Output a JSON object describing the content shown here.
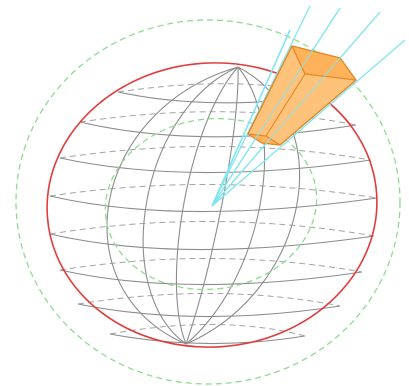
{
  "diagram": {
    "colors": {
      "globe_outline": "#e23b3b",
      "grid_line": "#8c8c8c",
      "outer_circle": "#8fdc8f",
      "inner_ellipse": "#8fdc8f",
      "rays": "#7fe6f0",
      "beam_fill": "#ffc27a",
      "beam_edge": "#e08a2a"
    },
    "elements": [
      "outer-dashed-circle",
      "globe-outline",
      "meridians",
      "latitude-lines",
      "inner-dashed-ellipse",
      "sensor-rays",
      "beam-frustum"
    ]
  }
}
